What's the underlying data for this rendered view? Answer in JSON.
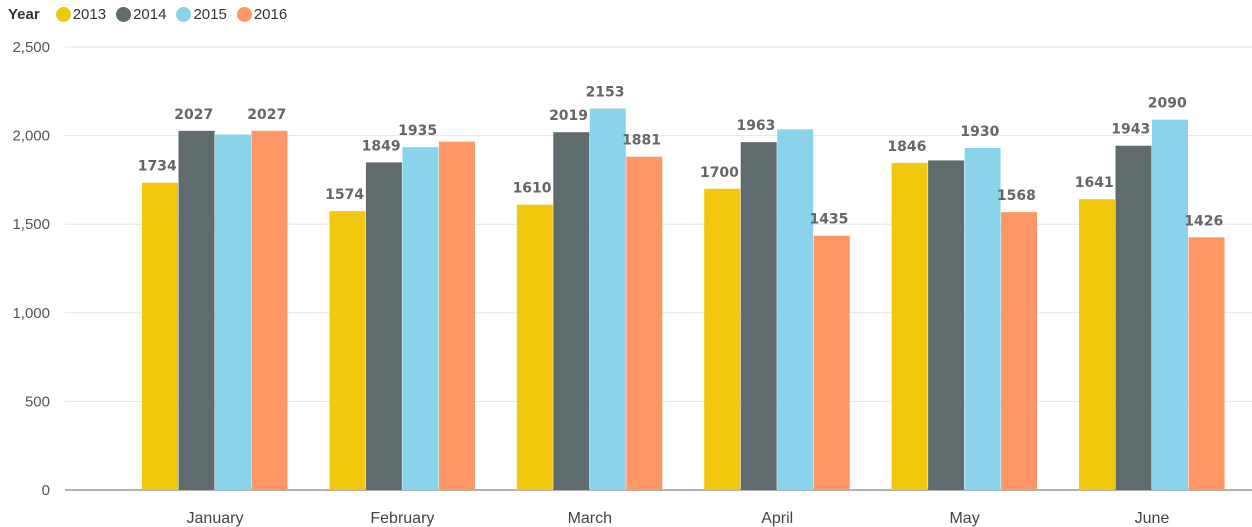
{
  "chart_data": {
    "type": "bar",
    "legend_title": "Year",
    "legend_position": "top-left",
    "grid": true,
    "categories": [
      "January",
      "February",
      "March",
      "April",
      "May",
      "June"
    ],
    "series": [
      {
        "name": "2013",
        "color": "#F2C80F",
        "values": [
          1734,
          1574,
          1610,
          1700,
          1846,
          1641
        ],
        "labels": [
          "1734",
          "1574",
          "1610",
          "1700",
          "1846",
          "1641"
        ]
      },
      {
        "name": "2014",
        "color": "#5F6B6D",
        "values": [
          2027,
          1849,
          2019,
          1963,
          1860,
          1943
        ],
        "labels": [
          "2027",
          "1849",
          "2019",
          "1963",
          "",
          "1943"
        ]
      },
      {
        "name": "2015",
        "color": "#8AD4EB",
        "values": [
          2006,
          1935,
          2153,
          2035,
          1930,
          2090
        ],
        "labels": [
          "",
          "1935",
          "2153",
          "",
          "1930",
          "2090"
        ]
      },
      {
        "name": "2016",
        "color": "#FE9666",
        "values": [
          2027,
          1966,
          1881,
          1435,
          1568,
          1426
        ],
        "labels": [
          "2027",
          "",
          "1881",
          "1435",
          "1568",
          "1426"
        ]
      }
    ],
    "ylim": [
      0,
      2500
    ],
    "yticks": [
      0,
      500,
      1000,
      1500,
      2000,
      2500
    ],
    "ytick_labels": [
      "0",
      "500",
      "1,000",
      "1,500",
      "2,000",
      "2,500"
    ]
  }
}
